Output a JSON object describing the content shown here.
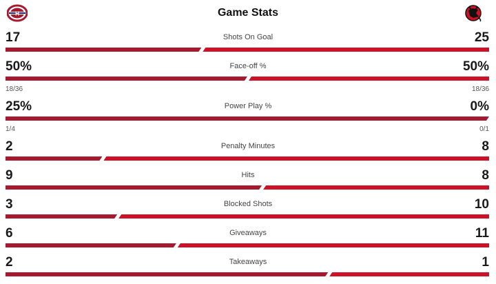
{
  "header": {
    "title": "Game Stats",
    "away_logo": "canadiens-logo-icon",
    "home_logo": "devils-logo-icon"
  },
  "colors": {
    "away": "#A6192E",
    "home": "#CE1126"
  },
  "stats": [
    {
      "label": "Shots On Goal",
      "away": "17",
      "home": "25",
      "away_share": 0.405
    },
    {
      "label": "Face-off %",
      "away": "50%",
      "home": "50%",
      "away_share": 0.5,
      "away_sub": "18/36",
      "home_sub": "18/36"
    },
    {
      "label": "Power Play %",
      "away": "25%",
      "home": "0%",
      "away_share": 1.0,
      "away_sub": "1/4",
      "home_sub": "0/1"
    },
    {
      "label": "Penalty Minutes",
      "away": "2",
      "home": "8",
      "away_share": 0.2
    },
    {
      "label": "Hits",
      "away": "9",
      "home": "8",
      "away_share": 0.53
    },
    {
      "label": "Blocked Shots",
      "away": "3",
      "home": "10",
      "away_share": 0.231
    },
    {
      "label": "Giveaways",
      "away": "6",
      "home": "11",
      "away_share": 0.353
    },
    {
      "label": "Takeaways",
      "away": "2",
      "home": "1",
      "away_share": 0.667
    }
  ]
}
